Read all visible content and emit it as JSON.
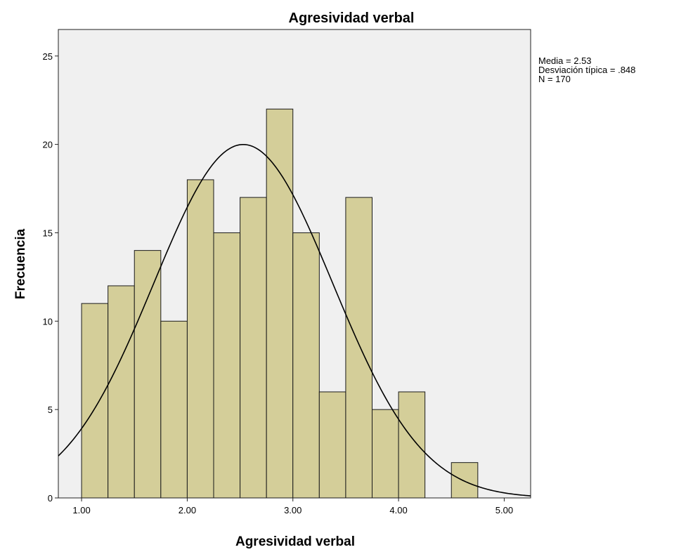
{
  "chart_data": {
    "type": "bar",
    "title": "Agresividad verbal",
    "xlabel": "Agresividad verbal",
    "ylabel": "Frecuencia",
    "bin_width": 0.25,
    "bins": [
      {
        "start": 1.0,
        "value": 11
      },
      {
        "start": 1.25,
        "value": 12
      },
      {
        "start": 1.5,
        "value": 14
      },
      {
        "start": 1.75,
        "value": 10
      },
      {
        "start": 2.0,
        "value": 18
      },
      {
        "start": 2.25,
        "value": 15
      },
      {
        "start": 2.5,
        "value": 17
      },
      {
        "start": 2.75,
        "value": 22
      },
      {
        "start": 3.0,
        "value": 15
      },
      {
        "start": 3.25,
        "value": 6
      },
      {
        "start": 3.5,
        "value": 17
      },
      {
        "start": 3.75,
        "value": 5
      },
      {
        "start": 4.0,
        "value": 6
      },
      {
        "start": 4.5,
        "value": 2
      }
    ],
    "xlim": [
      0.78,
      5.25
    ],
    "ylim": [
      0,
      26.5
    ],
    "x_ticks": [
      "1.00",
      "2.00",
      "3.00",
      "4.00",
      "5.00"
    ],
    "y_ticks": [
      "0",
      "5",
      "10",
      "15",
      "20",
      "25"
    ],
    "normal_curve": {
      "mean": 2.53,
      "sd": 0.848,
      "n": 170
    },
    "grid": false,
    "stats_lines": [
      "Media = 2.53",
      "Desviación típica = .848",
      "N = 170"
    ],
    "stats_placement": "top-right",
    "colors": {
      "bar_fill": "#d4ce99",
      "bar_stroke": "#1a1a1a",
      "plot_background": "#f0f0f0",
      "curve": "#000000"
    }
  }
}
